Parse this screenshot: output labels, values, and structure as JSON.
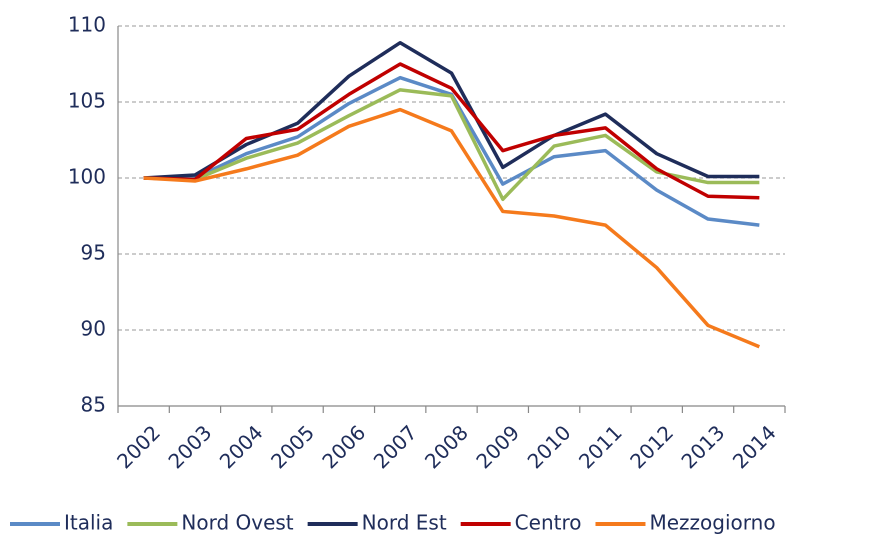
{
  "chart_data": {
    "type": "line",
    "categories": [
      "2002",
      "2003",
      "2004",
      "2005",
      "2006",
      "2007",
      "2008",
      "2009",
      "2010",
      "2011",
      "2012",
      "2013",
      "2014"
    ],
    "series": [
      {
        "name": "Italia",
        "color": "#5b8ac6",
        "values": [
          100,
          100,
          101.6,
          102.7,
          104.9,
          106.6,
          105.5,
          99.6,
          101.4,
          101.8,
          99.2,
          97.3,
          96.9
        ]
      },
      {
        "name": "Nord Ovest",
        "color": "#9bbb59",
        "values": [
          100,
          99.9,
          101.3,
          102.3,
          104.1,
          105.8,
          105.4,
          98.6,
          102.1,
          102.8,
          100.4,
          99.7,
          99.7
        ]
      },
      {
        "name": "Nord Est",
        "color": "#1f2d5a",
        "values": [
          100,
          100.2,
          102.2,
          103.6,
          106.7,
          108.9,
          106.9,
          100.7,
          102.8,
          104.2,
          101.6,
          100.1,
          100.1
        ]
      },
      {
        "name": "Centro",
        "color": "#c00000",
        "values": [
          100,
          99.9,
          102.6,
          103.2,
          105.5,
          107.5,
          105.9,
          101.8,
          102.8,
          103.3,
          100.6,
          98.8,
          98.7
        ]
      },
      {
        "name": "Mezzogiorno",
        "color": "#f57a1c",
        "values": [
          100,
          99.8,
          100.6,
          101.5,
          103.4,
          104.5,
          103.1,
          97.8,
          97.5,
          96.9,
          94.1,
          90.3,
          88.9
        ]
      }
    ],
    "ylim": [
      85,
      110
    ],
    "yticks": [
      85,
      90,
      95,
      100,
      105,
      110
    ],
    "grid": true,
    "legend": "bottom"
  }
}
